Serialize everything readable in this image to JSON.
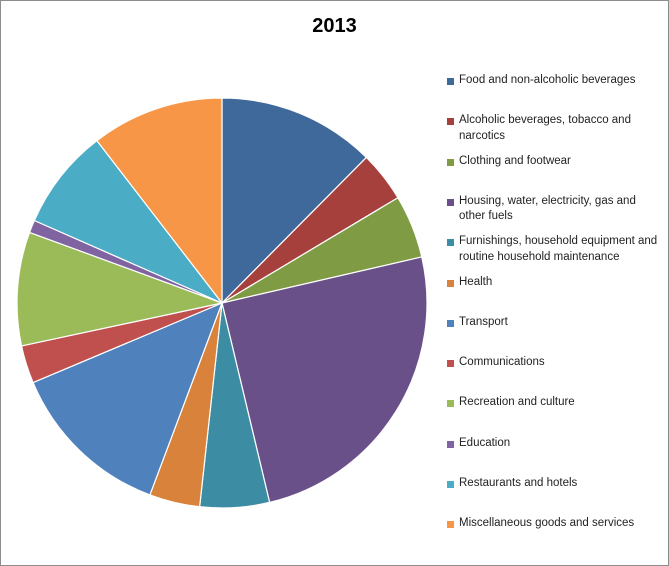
{
  "chart_data": {
    "type": "pie",
    "title": "2013",
    "legend_position": "right",
    "start_angle": "12 o'clock",
    "direction": "clockwise",
    "categories": [
      "Food and non-alcoholic beverages",
      "Alcoholic beverages, tobacco and narcotics",
      "Clothing and footwear",
      "Housing, water, electricity, gas and other fuels",
      "Furnishings, household equipment and routine household maintenance",
      "Health",
      "Transport",
      "Communications",
      "Recreation and culture",
      "Education",
      "Restaurants and hotels",
      "Miscellaneous goods and services"
    ],
    "values": [
      12.5,
      4.0,
      5.0,
      25.0,
      5.5,
      4.0,
      13.0,
      3.0,
      9.0,
      1.0,
      8.0,
      10.5
    ],
    "colors": [
      "#3f689b",
      "#a5403d",
      "#7f9b43",
      "#6a5088",
      "#3c8da3",
      "#d9823b",
      "#4f81bd",
      "#c0504d",
      "#9bbb59",
      "#8064a2",
      "#4bacc6",
      "#f79646"
    ]
  }
}
